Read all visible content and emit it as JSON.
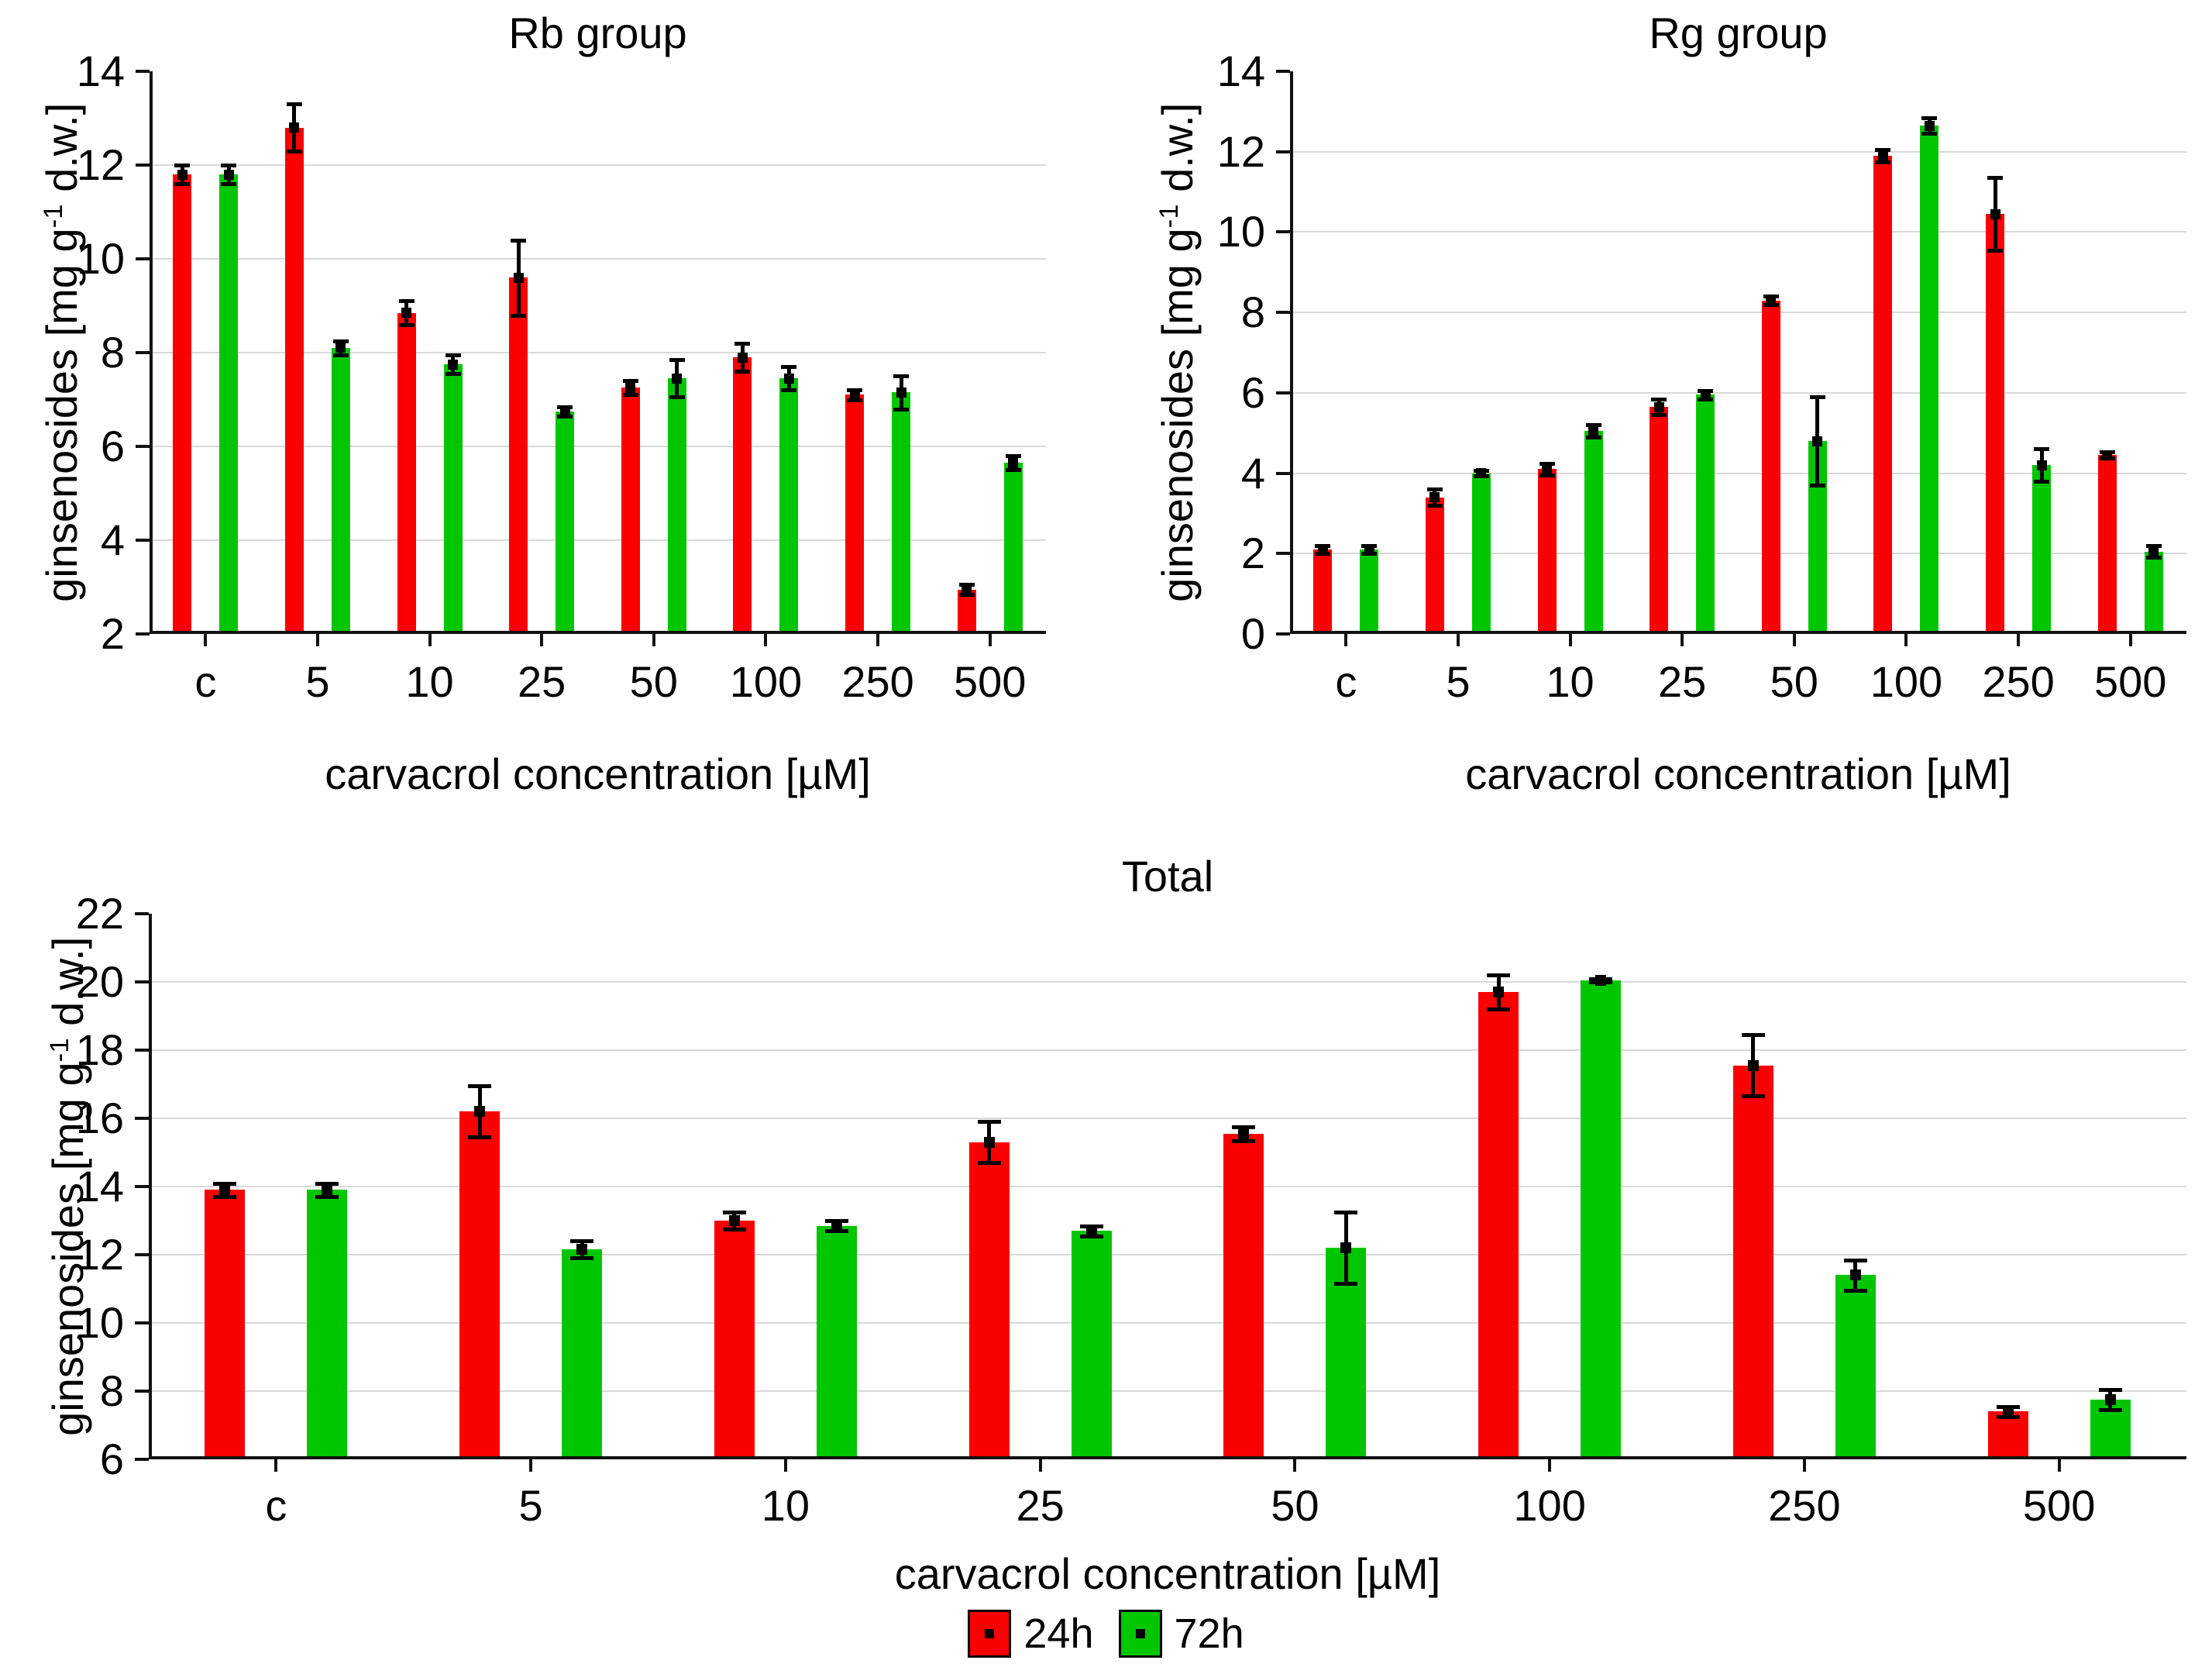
{
  "legend": {
    "items": [
      {
        "label": "24h",
        "color": "#fa0000"
      },
      {
        "label": "72h",
        "color": "#00c600"
      }
    ]
  },
  "chart_data": [
    {
      "type": "bar",
      "title": "Rb group",
      "ylabel": "ginsenosides [mg g-1 d.w.]",
      "ylabel_parts": {
        "pre": "ginsenosides [mg g",
        "sup": "-1",
        "post": " d.w.]"
      },
      "xlabel": "carvacrol concentration [µM]",
      "categories": [
        "c",
        "5",
        "10",
        "25",
        "50",
        "100",
        "250",
        "500"
      ],
      "ylim": [
        2,
        14
      ],
      "yticks": [
        2,
        4,
        6,
        8,
        10,
        12,
        14
      ],
      "grid": "horizontal",
      "legend_position": "shared-bottom",
      "series": [
        {
          "name": "24h",
          "color": "#fa0000",
          "values": [
            11.8,
            12.8,
            8.85,
            9.6,
            7.25,
            7.9,
            7.1,
            2.95
          ],
          "errors": [
            0.2,
            0.5,
            0.25,
            0.8,
            0.15,
            0.3,
            0.1,
            0.1
          ]
        },
        {
          "name": "72h",
          "color": "#00c600",
          "values": [
            11.8,
            8.1,
            7.75,
            6.75,
            7.45,
            7.45,
            7.15,
            5.65
          ],
          "errors": [
            0.2,
            0.15,
            0.2,
            0.1,
            0.4,
            0.25,
            0.35,
            0.15
          ]
        }
      ]
    },
    {
      "type": "bar",
      "title": "Rg group",
      "ylabel": "ginsenosides [mg g-1 d.w.]",
      "ylabel_parts": {
        "pre": "ginsenosides [mg g",
        "sup": "-1",
        "post": " d.w.]"
      },
      "xlabel": "carvacrol concentration [µM]",
      "categories": [
        "c",
        "5",
        "10",
        "25",
        "50",
        "100",
        "250",
        "500"
      ],
      "ylim": [
        0,
        14
      ],
      "yticks": [
        0,
        2,
        4,
        6,
        8,
        10,
        12,
        14
      ],
      "grid": "horizontal",
      "legend_position": "shared-bottom",
      "series": [
        {
          "name": "24h",
          "color": "#fa0000",
          "values": [
            2.1,
            3.4,
            4.1,
            5.65,
            8.3,
            11.9,
            10.45,
            4.45
          ],
          "errors": [
            0.1,
            0.2,
            0.15,
            0.2,
            0.1,
            0.15,
            0.9,
            0.08
          ]
        },
        {
          "name": "72h",
          "color": "#00c600",
          "values": [
            2.1,
            4.0,
            5.05,
            5.95,
            4.8,
            12.65,
            4.2,
            2.05
          ],
          "errors": [
            0.1,
            0.07,
            0.15,
            0.1,
            1.1,
            0.2,
            0.4,
            0.15
          ]
        }
      ]
    },
    {
      "type": "bar",
      "title": "Total",
      "ylabel": "ginsenosides [mg g-1 d.w.]",
      "ylabel_parts": {
        "pre": "ginsenosides [mg g",
        "sup": "-1",
        "post": " d.w.]"
      },
      "xlabel": "carvacrol concentration [µM]",
      "categories": [
        "c",
        "5",
        "10",
        "25",
        "50",
        "100",
        "250",
        "500"
      ],
      "ylim": [
        6,
        22
      ],
      "yticks": [
        6,
        8,
        10,
        12,
        14,
        16,
        18,
        20,
        22
      ],
      "grid": "horizontal",
      "legend_position": "bottom-center",
      "series": [
        {
          "name": "24h",
          "color": "#fa0000",
          "values": [
            13.9,
            16.2,
            13.0,
            15.3,
            15.55,
            19.7,
            17.55,
            7.4
          ],
          "errors": [
            0.2,
            0.75,
            0.25,
            0.6,
            0.2,
            0.5,
            0.9,
            0.15
          ]
        },
        {
          "name": "72h",
          "color": "#00c600",
          "values": [
            13.9,
            12.15,
            12.85,
            12.7,
            12.2,
            20.05,
            11.4,
            7.75
          ],
          "errors": [
            0.2,
            0.25,
            0.15,
            0.15,
            1.05,
            0.05,
            0.45,
            0.3
          ]
        }
      ]
    }
  ]
}
